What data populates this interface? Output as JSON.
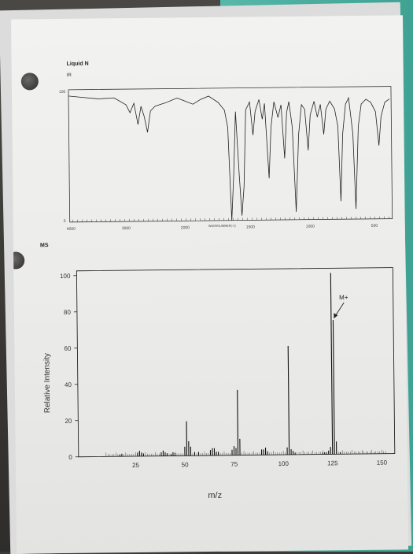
{
  "sheet": {
    "title": "Liquid N",
    "ir_label": "IR",
    "ms_label": "MS"
  },
  "ir_spectrum": {
    "y_tick_top": "100",
    "y_tick_bottom": "0",
    "x_ticks": [
      "4000",
      "3000",
      "2000",
      "1500",
      "1000",
      "500"
    ],
    "x_label": "WAVENUMBER(-1)"
  },
  "chart_data": {
    "type": "bar",
    "xlabel": "m/z",
    "ylabel": "Relative Intensity",
    "xlim": [
      0,
      155
    ],
    "ylim": [
      0,
      100
    ],
    "x_ticks": [
      25,
      50,
      75,
      100,
      125,
      150
    ],
    "y_ticks": [
      0,
      20,
      40,
      60,
      80,
      100
    ],
    "annotation": "M+",
    "x": [
      17,
      18,
      26,
      27,
      28,
      29,
      38,
      39,
      40,
      41,
      43,
      44,
      45,
      50,
      51,
      52,
      53,
      55,
      57,
      63,
      64,
      65,
      66,
      67,
      74,
      75,
      76,
      77,
      78,
      89,
      90,
      91,
      92,
      102,
      103,
      104,
      105,
      106,
      120,
      121,
      122,
      123,
      124,
      125,
      126,
      127,
      129
    ],
    "y": [
      1,
      1.5,
      2,
      3,
      2,
      1.5,
      2,
      3,
      2,
      1.5,
      1,
      2,
      1.5,
      5,
      19,
      8,
      5,
      2,
      2,
      3,
      4,
      4,
      2,
      2,
      3,
      5,
      4,
      36,
      9,
      3,
      3,
      4,
      2,
      4,
      60,
      3,
      2,
      1,
      1,
      1,
      1,
      2,
      4,
      100,
      74,
      7,
      1
    ]
  }
}
